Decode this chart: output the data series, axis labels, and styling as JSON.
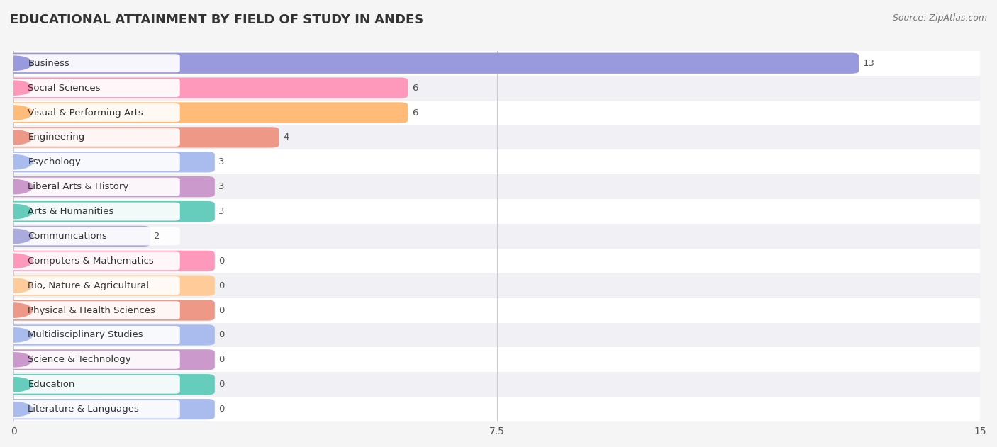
{
  "title": "EDUCATIONAL ATTAINMENT BY FIELD OF STUDY IN ANDES",
  "source": "Source: ZipAtlas.com",
  "categories": [
    "Business",
    "Social Sciences",
    "Visual & Performing Arts",
    "Engineering",
    "Psychology",
    "Liberal Arts & History",
    "Arts & Humanities",
    "Communications",
    "Computers & Mathematics",
    "Bio, Nature & Agricultural",
    "Physical & Health Sciences",
    "Multidisciplinary Studies",
    "Science & Technology",
    "Education",
    "Literature & Languages"
  ],
  "values": [
    13,
    6,
    6,
    4,
    3,
    3,
    3,
    2,
    0,
    0,
    0,
    0,
    0,
    0,
    0
  ],
  "bar_colors": [
    "#9999dd",
    "#ff99bb",
    "#ffbb77",
    "#ee9988",
    "#aabbee",
    "#cc99cc",
    "#66ccbb",
    "#aaaadd",
    "#ff99bb",
    "#ffcc99",
    "#ee9988",
    "#aabbee",
    "#cc99cc",
    "#66ccbb",
    "#aabbee"
  ],
  "xlim": [
    0,
    15
  ],
  "xticks": [
    0,
    7.5,
    15
  ],
  "background_color": "#f5f5f5",
  "title_fontsize": 13,
  "source_fontsize": 9,
  "label_fontsize": 9.5,
  "value_fontsize": 9.5,
  "bar_height": 0.6
}
